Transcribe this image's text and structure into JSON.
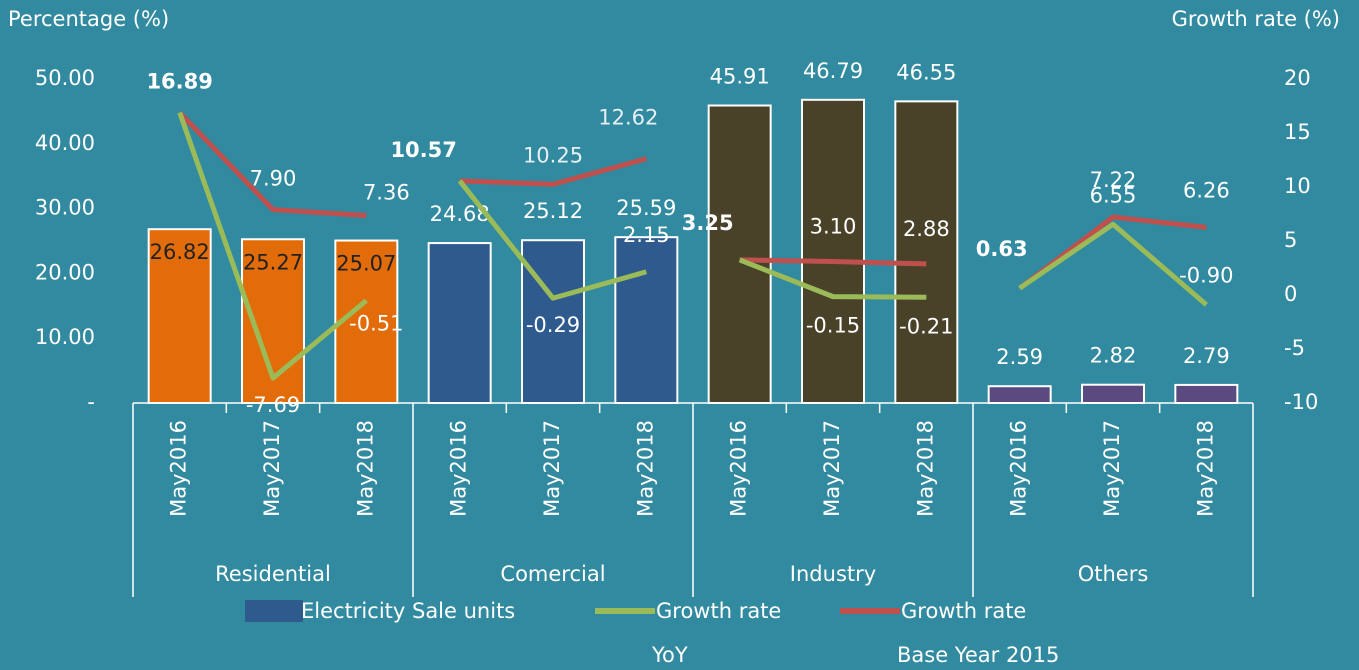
{
  "chart_data": {
    "type": "bar-line",
    "ylabel": "Percentage (%)",
    "y2label": "Growth rate (%)",
    "categories": [
      "May2016",
      "May2017",
      "May2018",
      "May2016",
      "May2017",
      "May2018",
      "May2016",
      "May2017",
      "May2018",
      "May2016",
      "May2017",
      "May2018"
    ],
    "groups": [
      "Residential",
      "Comercial",
      "Industry",
      "Others"
    ],
    "ylim": [
      0,
      50
    ],
    "yticks": [
      {
        "value": 0,
        "label": "-"
      },
      {
        "value": 10,
        "label": "10.00"
      },
      {
        "value": 20,
        "label": "20.00"
      },
      {
        "value": 30,
        "label": "30.00"
      },
      {
        "value": 40,
        "label": "40.00"
      },
      {
        "value": 50,
        "label": "50.00"
      }
    ],
    "y2lim": [
      -10,
      20
    ],
    "y2ticks": [
      -10,
      -5,
      0,
      5,
      10,
      15,
      20
    ],
    "series": [
      {
        "name": "Electricity Sale units",
        "kind": "bar",
        "color": "#2e5a8e",
        "group_colors": [
          "#e36c0a",
          "#2e5a8e",
          "#4a4228",
          "#5b4a80"
        ],
        "values": [
          26.82,
          25.27,
          25.07,
          24.68,
          25.12,
          25.59,
          45.91,
          46.79,
          46.55,
          2.59,
          2.82,
          2.79
        ]
      },
      {
        "name": "Growth rate",
        "subtitle": "YoY",
        "kind": "line",
        "axis": "y2",
        "color": "#9bbb59",
        "values": [
          16.89,
          -7.69,
          -0.51,
          10.57,
          -0.29,
          2.15,
          3.25,
          -0.15,
          -0.21,
          0.63,
          6.55,
          -0.9
        ],
        "value_labels": [
          "16.89",
          "-7.69",
          "-0.51",
          "10.57",
          "-0.29",
          "2.15",
          "3.25",
          "-0.15",
          "-0.21",
          "0.63",
          "6.55",
          "-0.90"
        ]
      },
      {
        "name": "Growth rate",
        "subtitle": "Base Year 2015",
        "kind": "line",
        "axis": "y2",
        "color": "#c0504d",
        "values": [
          16.89,
          7.9,
          7.36,
          10.57,
          10.25,
          12.62,
          3.25,
          3.1,
          2.88,
          0.63,
          7.22,
          6.26
        ],
        "value_labels": [
          null,
          "7.90",
          "7.36",
          null,
          "10.25",
          "12.62",
          null,
          "3.10",
          "2.88",
          null,
          "7.22",
          "6.26"
        ]
      }
    ]
  }
}
